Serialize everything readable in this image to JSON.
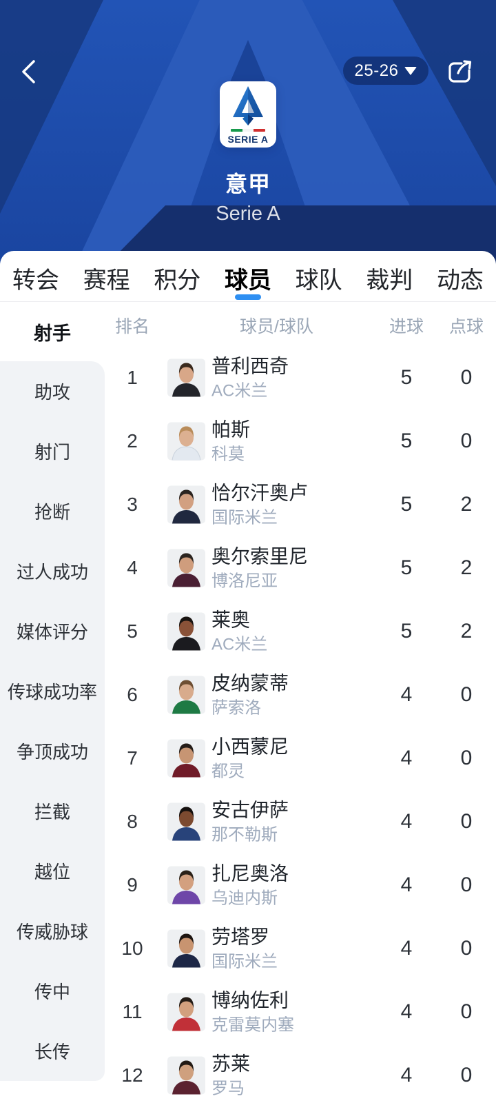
{
  "header": {
    "season_label": "25-26",
    "title": "意甲",
    "subtitle": "Serie A",
    "logo_caption": "SERIE A"
  },
  "tabs": {
    "active_index": 3,
    "items": [
      {
        "label": "转会"
      },
      {
        "label": "赛程"
      },
      {
        "label": "积分"
      },
      {
        "label": "球员"
      },
      {
        "label": "球队"
      },
      {
        "label": "裁判"
      },
      {
        "label": "动态"
      }
    ]
  },
  "sidebar": {
    "active_index": 0,
    "items": [
      {
        "label": "射手"
      },
      {
        "label": "助攻"
      },
      {
        "label": "射门"
      },
      {
        "label": "抢断"
      },
      {
        "label": "过人成功"
      },
      {
        "label": "媒体评分"
      },
      {
        "label": "传球成功率"
      },
      {
        "label": "争顶成功"
      },
      {
        "label": "拦截"
      },
      {
        "label": "越位"
      },
      {
        "label": "传威胁球"
      },
      {
        "label": "传中"
      },
      {
        "label": "长传"
      }
    ]
  },
  "table": {
    "headers": {
      "rank": "排名",
      "player": "球员/球队",
      "goals": "进球",
      "penalties": "点球"
    },
    "rows": [
      {
        "rank": "1",
        "name": "普利西奇",
        "team": "AC米兰",
        "goals": "5",
        "penalties": "0",
        "jersey": "#23242a",
        "hair": "#3a2a1e",
        "skin": "#d8a788"
      },
      {
        "rank": "2",
        "name": "帕斯",
        "team": "科莫",
        "goals": "5",
        "penalties": "0",
        "jersey": "#e3e9f0",
        "hair": "#b98c5a",
        "skin": "#dcb091"
      },
      {
        "rank": "3",
        "name": "恰尔汗奥卢",
        "team": "国际米兰",
        "goals": "5",
        "penalties": "2",
        "jersey": "#20283f",
        "hair": "#2b2420",
        "skin": "#d2a081"
      },
      {
        "rank": "4",
        "name": "奥尔索里尼",
        "team": "博洛尼亚",
        "goals": "5",
        "penalties": "2",
        "jersey": "#4a1f33",
        "hair": "#2b2420",
        "skin": "#cf9d7d"
      },
      {
        "rank": "5",
        "name": "莱奥",
        "team": "AC米兰",
        "goals": "5",
        "penalties": "2",
        "jersey": "#1b1b1f",
        "hair": "#191411",
        "skin": "#8a5238"
      },
      {
        "rank": "6",
        "name": "皮纳蒙蒂",
        "team": "萨索洛",
        "goals": "4",
        "penalties": "0",
        "jersey": "#1e7a44",
        "hair": "#6e4f33",
        "skin": "#d8ab8c"
      },
      {
        "rank": "7",
        "name": "小西蒙尼",
        "team": "都灵",
        "goals": "4",
        "penalties": "0",
        "jersey": "#701b28",
        "hair": "#241c18",
        "skin": "#c79573"
      },
      {
        "rank": "8",
        "name": "安古伊萨",
        "team": "那不勒斯",
        "goals": "4",
        "penalties": "0",
        "jersey": "#28437a",
        "hair": "#15100e",
        "skin": "#7c4a30"
      },
      {
        "rank": "9",
        "name": "扎尼奥洛",
        "team": "乌迪内斯",
        "goals": "4",
        "penalties": "0",
        "jersey": "#6e46a8",
        "hair": "#2b2118",
        "skin": "#d3a07f"
      },
      {
        "rank": "10",
        "name": "劳塔罗",
        "team": "国际米兰",
        "goals": "4",
        "penalties": "0",
        "jersey": "#1d2746",
        "hair": "#1c1410",
        "skin": "#c89470"
      },
      {
        "rank": "11",
        "name": "博纳佐利",
        "team": "克雷莫内塞",
        "goals": "4",
        "penalties": "0",
        "jersey": "#c13038",
        "hair": "#241c16",
        "skin": "#d2a07e"
      },
      {
        "rank": "12",
        "name": "苏莱",
        "team": "罗马",
        "goals": "4",
        "penalties": "0",
        "jersey": "#5b2230",
        "hair": "#221a14",
        "skin": "#cfa07e"
      }
    ]
  },
  "colors": {
    "accent_blue": "#2e8ff2",
    "hero_base": "#1d4aa5",
    "hero_light_leg": "#2c5cba",
    "hero_dark": "#16326f",
    "pill_bg": "rgba(9,29,80,0.55)",
    "muted_text": "#9aa6b6",
    "sidebar_bg": "#f1f3f6"
  }
}
